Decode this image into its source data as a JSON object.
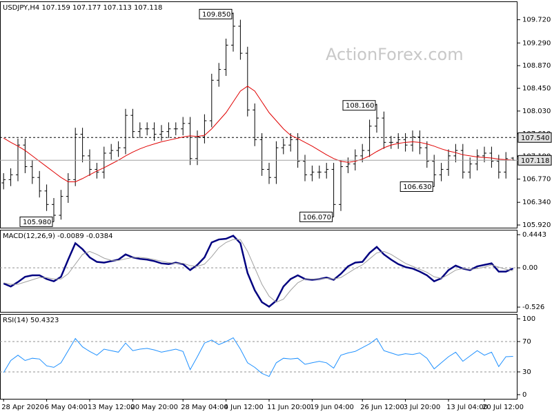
{
  "chart_data": [
    {
      "type": "ohlc",
      "title": "USDJPY,H4  107.159 107.177 107.113 107.118",
      "watermark": "ActionForex.com",
      "color": "#000000",
      "categories": [
        "28 Apr 2020",
        null,
        null,
        null,
        null,
        null,
        "6 May 04:00",
        null,
        null,
        null,
        null,
        null,
        "13 May 12:00",
        null,
        null,
        null,
        null,
        null,
        "20 May 20:00",
        null,
        null,
        null,
        null,
        null,
        null,
        "28 May 04:00",
        null,
        null,
        null,
        null,
        null,
        "4 Jun 12:00",
        null,
        null,
        null,
        null,
        null,
        "11 Jun 20:00",
        null,
        null,
        null,
        null,
        null,
        "19 Jun 04:00",
        null,
        null,
        null,
        null,
        null,
        null,
        "26 Jun 12:00",
        null,
        null,
        null,
        null,
        null,
        "3 Jul 20:00",
        null,
        null,
        null,
        null,
        null,
        "13 Jul 04:00",
        null,
        null,
        null,
        null,
        "20 Jul 12:00",
        null,
        null,
        null,
        null
      ],
      "open": [
        106.7,
        106.76,
        106.85,
        107.4,
        107.0,
        106.8,
        106.55,
        106.3,
        106.1,
        106.45,
        106.76,
        107.6,
        107.2,
        106.95,
        106.9,
        107.25,
        107.3,
        107.35,
        107.95,
        107.65,
        107.7,
        107.7,
        107.6,
        107.65,
        107.7,
        107.7,
        107.8,
        107.15,
        107.55,
        107.85,
        108.6,
        108.8,
        109.25,
        109.6,
        109.1,
        108.05,
        107.5,
        106.95,
        106.8,
        107.35,
        107.4,
        107.5,
        107.1,
        106.85,
        106.9,
        106.9,
        106.95,
        106.3,
        107.0,
        107.05,
        107.2,
        107.3,
        107.75,
        107.9,
        107.45,
        107.45,
        107.5,
        107.4,
        107.55,
        107.35,
        107.1,
        106.85,
        106.95,
        107.2,
        107.3,
        106.9,
        107.05,
        107.2,
        107.25,
        107.1,
        106.9,
        107.159
      ],
      "high": [
        106.88,
        106.97,
        107.52,
        107.52,
        107.12,
        106.92,
        106.67,
        106.42,
        106.57,
        106.88,
        107.72,
        107.72,
        107.32,
        107.07,
        107.37,
        107.42,
        107.47,
        108.07,
        108.07,
        107.82,
        107.82,
        107.82,
        107.77,
        107.82,
        107.82,
        107.92,
        107.92,
        107.67,
        107.97,
        108.72,
        108.92,
        109.37,
        109.85,
        109.72,
        109.22,
        108.17,
        107.62,
        107.07,
        107.47,
        107.52,
        107.62,
        107.62,
        107.22,
        107.02,
        107.02,
        107.07,
        107.07,
        107.12,
        107.17,
        107.32,
        107.42,
        107.87,
        108.16,
        108.02,
        107.57,
        107.62,
        107.62,
        107.67,
        107.67,
        107.47,
        107.22,
        107.07,
        107.32,
        107.42,
        107.42,
        107.17,
        107.32,
        107.37,
        107.37,
        107.22,
        107.27,
        107.177
      ],
      "low": [
        106.58,
        106.64,
        106.73,
        106.88,
        106.68,
        106.43,
        106.18,
        105.98,
        106.02,
        106.33,
        106.64,
        107.08,
        106.83,
        106.78,
        106.78,
        107.13,
        107.18,
        107.23,
        107.53,
        107.53,
        107.58,
        107.48,
        107.48,
        107.53,
        107.58,
        107.58,
        107.03,
        107.03,
        107.43,
        107.73,
        108.48,
        108.68,
        109.13,
        108.98,
        107.93,
        107.38,
        106.83,
        106.68,
        106.68,
        107.23,
        107.28,
        106.98,
        106.73,
        106.73,
        106.78,
        106.78,
        106.07,
        106.18,
        106.88,
        106.93,
        107.08,
        107.18,
        107.63,
        107.33,
        107.33,
        107.33,
        107.28,
        107.28,
        107.23,
        106.98,
        106.63,
        106.73,
        106.83,
        107.08,
        106.78,
        106.78,
        106.93,
        107.08,
        106.98,
        106.78,
        106.78,
        107.113
      ],
      "close": [
        106.76,
        106.85,
        107.4,
        107.0,
        106.8,
        106.55,
        106.3,
        106.1,
        106.45,
        106.76,
        107.6,
        107.2,
        106.95,
        106.9,
        107.25,
        107.3,
        107.35,
        107.95,
        107.65,
        107.7,
        107.7,
        107.6,
        107.65,
        107.7,
        107.7,
        107.8,
        107.15,
        107.55,
        107.85,
        108.6,
        108.8,
        109.25,
        109.6,
        109.1,
        108.05,
        107.5,
        106.95,
        106.8,
        107.35,
        107.4,
        107.5,
        107.1,
        106.85,
        106.9,
        106.9,
        106.95,
        106.3,
        107.0,
        107.05,
        107.2,
        107.3,
        107.75,
        107.9,
        107.45,
        107.45,
        107.5,
        107.4,
        107.55,
        107.35,
        107.1,
        106.85,
        106.95,
        107.2,
        107.3,
        106.9,
        107.05,
        107.2,
        107.25,
        107.1,
        106.9,
        107.15,
        107.118
      ],
      "ma": {
        "color": "#e00000",
        "values": [
          107.53,
          107.45,
          107.38,
          107.3,
          107.2,
          107.1,
          107.0,
          106.9,
          106.8,
          106.72,
          106.72,
          106.78,
          106.85,
          106.92,
          106.98,
          107.05,
          107.12,
          107.2,
          107.27,
          107.33,
          107.38,
          107.42,
          107.46,
          107.49,
          107.52,
          107.55,
          107.57,
          107.56,
          107.58,
          107.7,
          107.85,
          108.0,
          108.2,
          108.4,
          108.49,
          108.4,
          108.2,
          108.0,
          107.85,
          107.7,
          107.58,
          107.52,
          107.45,
          107.38,
          107.3,
          107.22,
          107.15,
          107.1,
          107.08,
          107.1,
          107.14,
          107.2,
          107.28,
          107.35,
          107.4,
          107.43,
          107.45,
          107.46,
          107.45,
          107.42,
          107.38,
          107.33,
          107.29,
          107.26,
          107.22,
          107.2,
          107.18,
          107.17,
          107.16,
          107.14,
          107.13,
          107.12
        ]
      },
      "ylim": [
        105.87,
        110.06
      ],
      "yticks": [
        {
          "value": 105.92,
          "label": "105.920"
        },
        {
          "value": 106.34,
          "label": "106.340"
        },
        {
          "value": 106.77,
          "label": "106.770"
        },
        {
          "value": 107.19,
          "label": "107.190"
        },
        {
          "value": 107.61,
          "label": "107.610"
        },
        {
          "value": 108.03,
          "label": "108.030"
        },
        {
          "value": 108.45,
          "label": "108.450"
        },
        {
          "value": 108.87,
          "label": "108.870"
        },
        {
          "value": 109.29,
          "label": "109.290"
        },
        {
          "value": 109.72,
          "label": "109.720"
        }
      ],
      "levels": [
        {
          "value": 107.54,
          "label": "107.540"
        }
      ],
      "annotations": [
        {
          "value": 109.85,
          "label": "109.850"
        },
        {
          "value": 108.16,
          "label": "108.160"
        },
        {
          "value": 105.98,
          "label": "105.980"
        },
        {
          "value": 106.07,
          "label": "106.070"
        },
        {
          "value": 106.63,
          "label": "106.630"
        }
      ]
    },
    {
      "type": "line",
      "title": "MACD(12,26,9) -0.0089 -0.0384",
      "series": [
        {
          "color": "#000080",
          "values": [
            -0.21,
            -0.25,
            -0.19,
            -0.12,
            -0.1,
            -0.1,
            -0.15,
            -0.18,
            -0.12,
            0.11,
            0.33,
            0.25,
            0.14,
            0.08,
            0.07,
            0.09,
            0.11,
            0.18,
            0.14,
            0.12,
            0.11,
            0.09,
            0.06,
            0.05,
            0.07,
            0.05,
            -0.03,
            0.04,
            0.14,
            0.34,
            0.38,
            0.39,
            0.43,
            0.33,
            -0.07,
            -0.3,
            -0.46,
            -0.52,
            -0.44,
            -0.25,
            -0.15,
            -0.1,
            -0.15,
            -0.16,
            -0.15,
            -0.13,
            -0.16,
            -0.08,
            0.02,
            0.07,
            0.08,
            0.2,
            0.28,
            0.18,
            0.11,
            0.05,
            0.01,
            -0.01,
            -0.05,
            -0.1,
            -0.18,
            -0.14,
            -0.03,
            0.03,
            -0.01,
            -0.03,
            0.02,
            0.04,
            0.06,
            -0.05,
            -0.05,
            -0.0089
          ]
        },
        {
          "color": "#a0a0a0",
          "values": [
            -0.2,
            -0.22,
            -0.22,
            -0.19,
            -0.16,
            -0.13,
            -0.13,
            -0.15,
            -0.15,
            -0.08,
            0.05,
            0.18,
            0.22,
            0.18,
            0.13,
            0.1,
            0.1,
            0.12,
            0.14,
            0.14,
            0.13,
            0.11,
            0.09,
            0.07,
            0.06,
            0.06,
            0.03,
            0.02,
            0.05,
            0.15,
            0.27,
            0.34,
            0.38,
            0.38,
            0.22,
            0.0,
            -0.22,
            -0.38,
            -0.46,
            -0.42,
            -0.3,
            -0.2,
            -0.15,
            -0.15,
            -0.15,
            -0.14,
            -0.15,
            -0.13,
            -0.07,
            -0.01,
            0.04,
            0.12,
            0.2,
            0.22,
            0.18,
            0.12,
            0.06,
            0.02,
            -0.02,
            -0.06,
            -0.12,
            -0.14,
            -0.09,
            -0.03,
            -0.01,
            -0.02,
            -0.01,
            0.01,
            0.04,
            0.01,
            -0.02,
            -0.0384
          ]
        }
      ],
      "ylim": [
        -0.59,
        0.51
      ],
      "yticks": [
        -0.526,
        {
          "value": 0,
          "label": "0.00"
        },
        0.4443
      ],
      "levels": [
        0
      ]
    },
    {
      "type": "line",
      "title": "RSI(14) 50.4323",
      "series": [
        {
          "color": "#1e90ff",
          "values": [
            29.1,
            45,
            52,
            45,
            48,
            47,
            38,
            36,
            42,
            58,
            74,
            63,
            57,
            52,
            60,
            58,
            56,
            68,
            58,
            60,
            61,
            59,
            56,
            58,
            60,
            57,
            33,
            50,
            68,
            72,
            66,
            70,
            75,
            60,
            42,
            36,
            28,
            24,
            42,
            48,
            47,
            48,
            40,
            42,
            44,
            42,
            35,
            52,
            55,
            57,
            62,
            67,
            74,
            58,
            55,
            52,
            54,
            53,
            55,
            48,
            34,
            42,
            50,
            56,
            44,
            51,
            58,
            52,
            56,
            37,
            50,
            50.4323
          ]
        }
      ],
      "ylim": [
        -5.5,
        106.4
      ],
      "yticks": [
        0,
        30,
        70,
        100
      ],
      "levels": [
        70,
        30
      ]
    }
  ]
}
